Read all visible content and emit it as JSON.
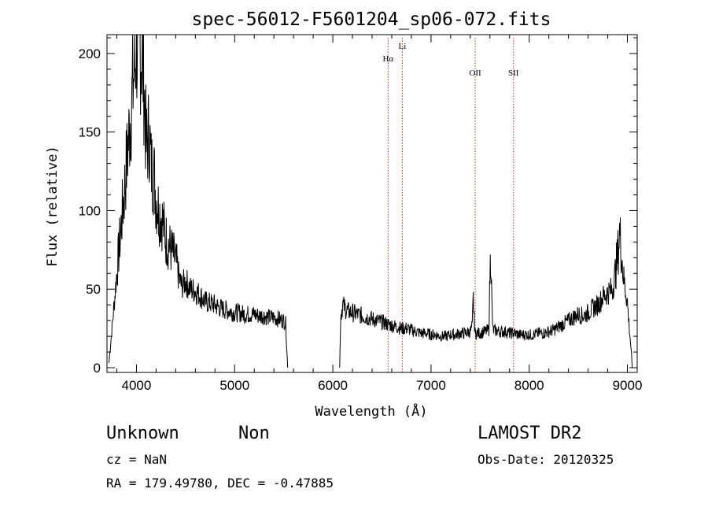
{
  "chart_data": {
    "type": "line",
    "title": "spec-56012-F5601204_sp06-072.fits",
    "xlabel": "Wavelength (Å)",
    "ylabel": "Flux (relative)",
    "xlim": [
      3700,
      9100
    ],
    "ylim": [
      -3,
      212
    ],
    "xticks": [
      4000,
      5000,
      6000,
      7000,
      8000,
      9000
    ],
    "yticks": [
      0,
      50,
      100,
      150,
      200
    ],
    "lines": [
      {
        "name": "Hα",
        "x": 6563,
        "label_level": "low"
      },
      {
        "name": "Li",
        "x": 6708,
        "label_level": "high"
      },
      {
        "name": "OII",
        "x": 7450,
        "label_level": "mid"
      },
      {
        "name": "SII",
        "x": 7840,
        "label_level": "mid"
      }
    ],
    "series": [
      {
        "name": "flux",
        "segments": [
          [
            [
              3720,
              3
            ],
            [
              3800,
              60
            ],
            [
              3880,
              115
            ],
            [
              3950,
              168
            ],
            [
              3980,
              190
            ],
            [
              4000,
              205
            ],
            [
              4030,
              210
            ],
            [
              4060,
              196
            ],
            [
              4080,
              178
            ],
            [
              4100,
              140
            ],
            [
              4130,
              150
            ],
            [
              4150,
              128
            ],
            [
              4180,
              122
            ],
            [
              4200,
              108
            ],
            [
              4230,
              100
            ],
            [
              4260,
              95
            ],
            [
              4300,
              82
            ],
            [
              4330,
              78
            ],
            [
              4360,
              74
            ],
            [
              4400,
              68
            ],
            [
              4430,
              58
            ],
            [
              4460,
              52
            ],
            [
              4500,
              55
            ],
            [
              4550,
              50
            ],
            [
              4600,
              49
            ],
            [
              4650,
              46
            ],
            [
              4700,
              42
            ],
            [
              4750,
              41
            ],
            [
              4800,
              40
            ],
            [
              4850,
              38
            ],
            [
              4900,
              37
            ],
            [
              4950,
              36
            ],
            [
              5000,
              35
            ],
            [
              5050,
              35
            ],
            [
              5100,
              34
            ],
            [
              5150,
              34
            ],
            [
              5200,
              34
            ],
            [
              5250,
              33
            ],
            [
              5300,
              33
            ],
            [
              5350,
              32
            ],
            [
              5400,
              32
            ],
            [
              5450,
              31
            ],
            [
              5500,
              30
            ],
            [
              5520,
              28
            ],
            [
              5540,
              0
            ]
          ],
          [
            [
              6070,
              0
            ],
            [
              6080,
              33
            ],
            [
              6100,
              40
            ],
            [
              6150,
              36
            ],
            [
              6200,
              35
            ],
            [
              6250,
              34
            ],
            [
              6300,
              33
            ],
            [
              6350,
              32
            ],
            [
              6400,
              31
            ],
            [
              6450,
              30
            ],
            [
              6500,
              29
            ],
            [
              6550,
              28
            ],
            [
              6600,
              27
            ],
            [
              6650,
              26
            ],
            [
              6700,
              25
            ],
            [
              6750,
              25
            ],
            [
              6800,
              24
            ],
            [
              6850,
              23
            ],
            [
              6900,
              22
            ],
            [
              6950,
              22
            ],
            [
              7000,
              21
            ],
            [
              7050,
              21
            ],
            [
              7100,
              20
            ],
            [
              7150,
              20
            ],
            [
              7200,
              21
            ],
            [
              7250,
              21
            ],
            [
              7300,
              22
            ],
            [
              7350,
              22
            ],
            [
              7400,
              23
            ],
            [
              7420,
              26
            ],
            [
              7430,
              44
            ],
            [
              7440,
              30
            ],
            [
              7450,
              22
            ],
            [
              7500,
              22
            ],
            [
              7550,
              23
            ],
            [
              7590,
              24
            ],
            [
              7600,
              60
            ],
            [
              7610,
              74
            ],
            [
              7620,
              40
            ],
            [
              7630,
              24
            ],
            [
              7700,
              23
            ],
            [
              7750,
              23
            ],
            [
              7800,
              22
            ],
            [
              7850,
              22
            ],
            [
              7900,
              21
            ],
            [
              7950,
              21
            ],
            [
              8000,
              21
            ],
            [
              8050,
              21
            ],
            [
              8100,
              22
            ],
            [
              8150,
              22
            ],
            [
              8200,
              23
            ],
            [
              8250,
              24
            ],
            [
              8300,
              26
            ],
            [
              8350,
              28
            ],
            [
              8400,
              30
            ],
            [
              8450,
              32
            ],
            [
              8500,
              34
            ],
            [
              8550,
              33
            ],
            [
              8600,
              35
            ],
            [
              8650,
              38
            ],
            [
              8700,
              40
            ],
            [
              8750,
              45
            ],
            [
              8800,
              48
            ],
            [
              8850,
              50
            ],
            [
              8900,
              70
            ],
            [
              8920,
              86
            ],
            [
              8940,
              75
            ],
            [
              8960,
              58
            ],
            [
              9000,
              42
            ],
            [
              9020,
              25
            ],
            [
              9040,
              10
            ],
            [
              9050,
              0
            ]
          ]
        ]
      }
    ]
  },
  "footer": {
    "class_label": "Unknown",
    "subclass_label": "Non",
    "survey_label": "LAMOST DR2",
    "cz_text": "cz = NaN",
    "obs_date_text": "Obs-Date: 20120325",
    "radec_text": "RA = 179.49780, DEC =  -0.47885"
  },
  "colors": {
    "spectrum": "#000000",
    "line_marker": "#b03030",
    "axes": "#000000"
  }
}
